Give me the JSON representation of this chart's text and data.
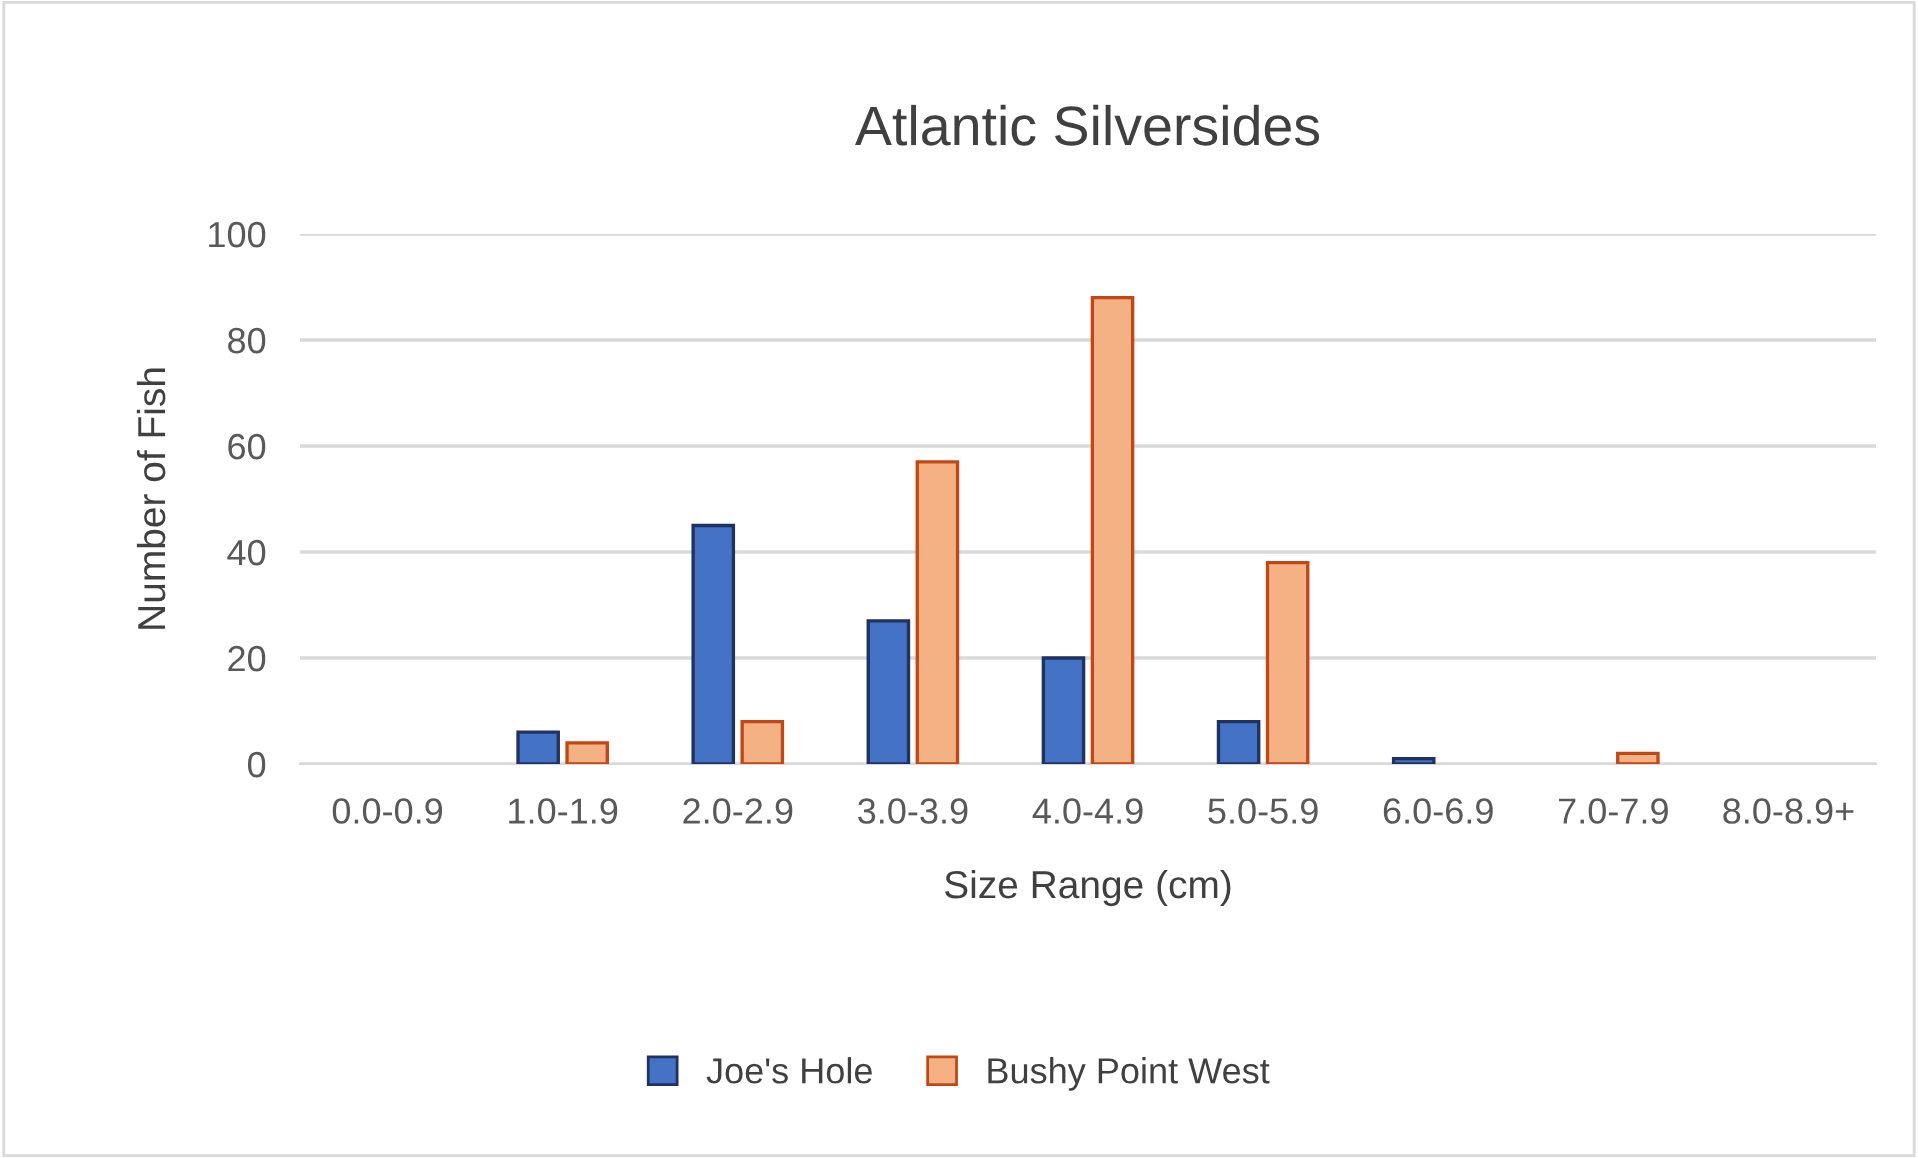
{
  "chart_data": {
    "type": "bar",
    "title": "Atlantic Silversides",
    "xlabel": "Size Range (cm)",
    "ylabel": "Number of Fish",
    "categories": [
      "0.0-0.9",
      "1.0-1.9",
      "2.0-2.9",
      "3.0-3.9",
      "4.0-4.9",
      "5.0-5.9",
      "6.0-6.9",
      "7.0-7.9",
      "8.0-8.9+"
    ],
    "series": [
      {
        "name": "Joe's Hole",
        "color": "#4472c4",
        "values": [
          0,
          6,
          45,
          27,
          20,
          8,
          1,
          0,
          0
        ]
      },
      {
        "name": "Bushy Point West",
        "color": "#f4b183",
        "values": [
          0,
          4,
          8,
          57,
          88,
          38,
          0,
          2,
          0
        ]
      }
    ],
    "ylim": [
      0,
      100
    ],
    "yticks": [
      0,
      20,
      40,
      60,
      80,
      100
    ],
    "grid": "y",
    "legend": "bottom"
  }
}
